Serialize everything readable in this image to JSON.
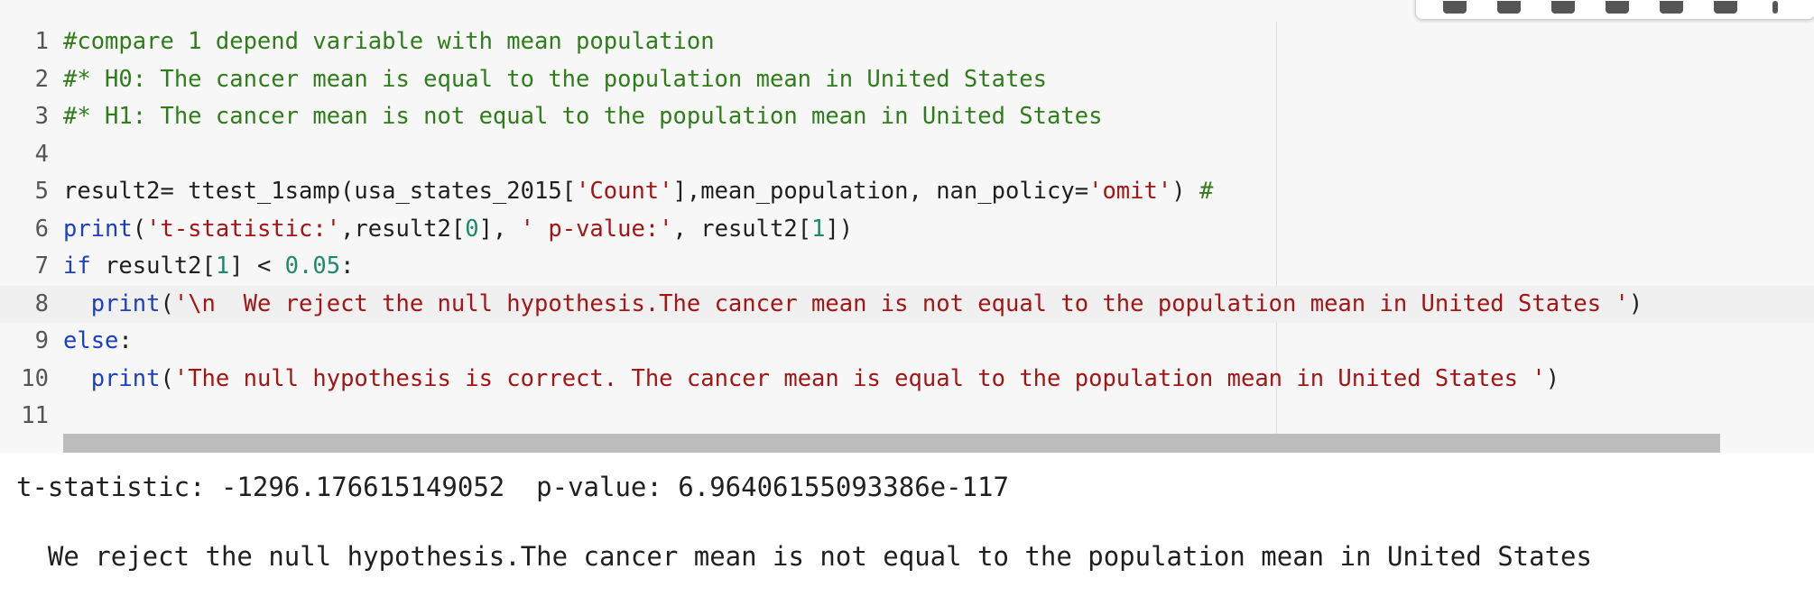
{
  "editor": {
    "lines": [
      {
        "n": "1",
        "tokens": [
          {
            "t": "comment",
            "v": "#compare 1 depend variable with mean population"
          }
        ]
      },
      {
        "n": "2",
        "tokens": [
          {
            "t": "comment",
            "v": "#* H0: The cancer mean is equal to the population mean in United States"
          }
        ]
      },
      {
        "n": "3",
        "tokens": [
          {
            "t": "comment",
            "v": "#* H1: The cancer mean is not equal to the population mean in United States"
          }
        ]
      },
      {
        "n": "4",
        "tokens": []
      },
      {
        "n": "5",
        "tokens": [
          {
            "t": "plain",
            "v": "result2= ttest_1samp(usa_states_2015["
          },
          {
            "t": "str",
            "v": "'Count'"
          },
          {
            "t": "plain",
            "v": "],mean_population, nan_policy="
          },
          {
            "t": "str",
            "v": "'omit'"
          },
          {
            "t": "plain",
            "v": ") "
          },
          {
            "t": "comment",
            "v": "#"
          }
        ]
      },
      {
        "n": "6",
        "tokens": [
          {
            "t": "kw",
            "v": "print"
          },
          {
            "t": "plain",
            "v": "("
          },
          {
            "t": "str",
            "v": "'t-statistic:'"
          },
          {
            "t": "plain",
            "v": ",result2["
          },
          {
            "t": "num",
            "v": "0"
          },
          {
            "t": "plain",
            "v": "], "
          },
          {
            "t": "str",
            "v": "' p-value:'"
          },
          {
            "t": "plain",
            "v": ", result2["
          },
          {
            "t": "num",
            "v": "1"
          },
          {
            "t": "plain",
            "v": "])"
          }
        ]
      },
      {
        "n": "7",
        "tokens": [
          {
            "t": "kw",
            "v": "if"
          },
          {
            "t": "plain",
            "v": " result2["
          },
          {
            "t": "num",
            "v": "1"
          },
          {
            "t": "plain",
            "v": "] < "
          },
          {
            "t": "num",
            "v": "0.05"
          },
          {
            "t": "plain",
            "v": ":"
          }
        ]
      },
      {
        "n": "8",
        "active": true,
        "tokens": [
          {
            "t": "plain",
            "v": "  "
          },
          {
            "t": "kw",
            "v": "print"
          },
          {
            "t": "plain",
            "v": "("
          },
          {
            "t": "str",
            "v": "'\\n  We reject the null hypothesis.The cancer mean is not equal to the population mean in United States '"
          },
          {
            "t": "plain",
            "v": ")"
          }
        ]
      },
      {
        "n": "9",
        "tokens": [
          {
            "t": "kw",
            "v": "else"
          },
          {
            "t": "plain",
            "v": ":"
          }
        ]
      },
      {
        "n": "10",
        "tokens": [
          {
            "t": "plain",
            "v": "  "
          },
          {
            "t": "kw",
            "v": "print"
          },
          {
            "t": "plain",
            "v": "("
          },
          {
            "t": "str",
            "v": "'The null hypothesis is correct. The cancer mean is equal to the population mean in United States '"
          },
          {
            "t": "plain",
            "v": ")"
          }
        ]
      },
      {
        "n": "11",
        "tokens": []
      }
    ]
  },
  "toolbar": {
    "icons": [
      "move-up-icon",
      "move-down-icon",
      "link-icon",
      "comment-icon",
      "settings-icon",
      "delete-icon",
      "more-icon"
    ]
  },
  "output": {
    "line1": "t-statistic: -1296.176615149052  p-value: 6.96406155093386e-117",
    "line2": "  We reject the null hypothesis.The cancer mean is not equal to the population mean in United States"
  },
  "colors": {
    "comment": "#2e7d1a",
    "keyword": "#1b3fbf",
    "string": "#a31515",
    "number": "#1b8a6b",
    "editor_bg": "#f7f7f7"
  }
}
